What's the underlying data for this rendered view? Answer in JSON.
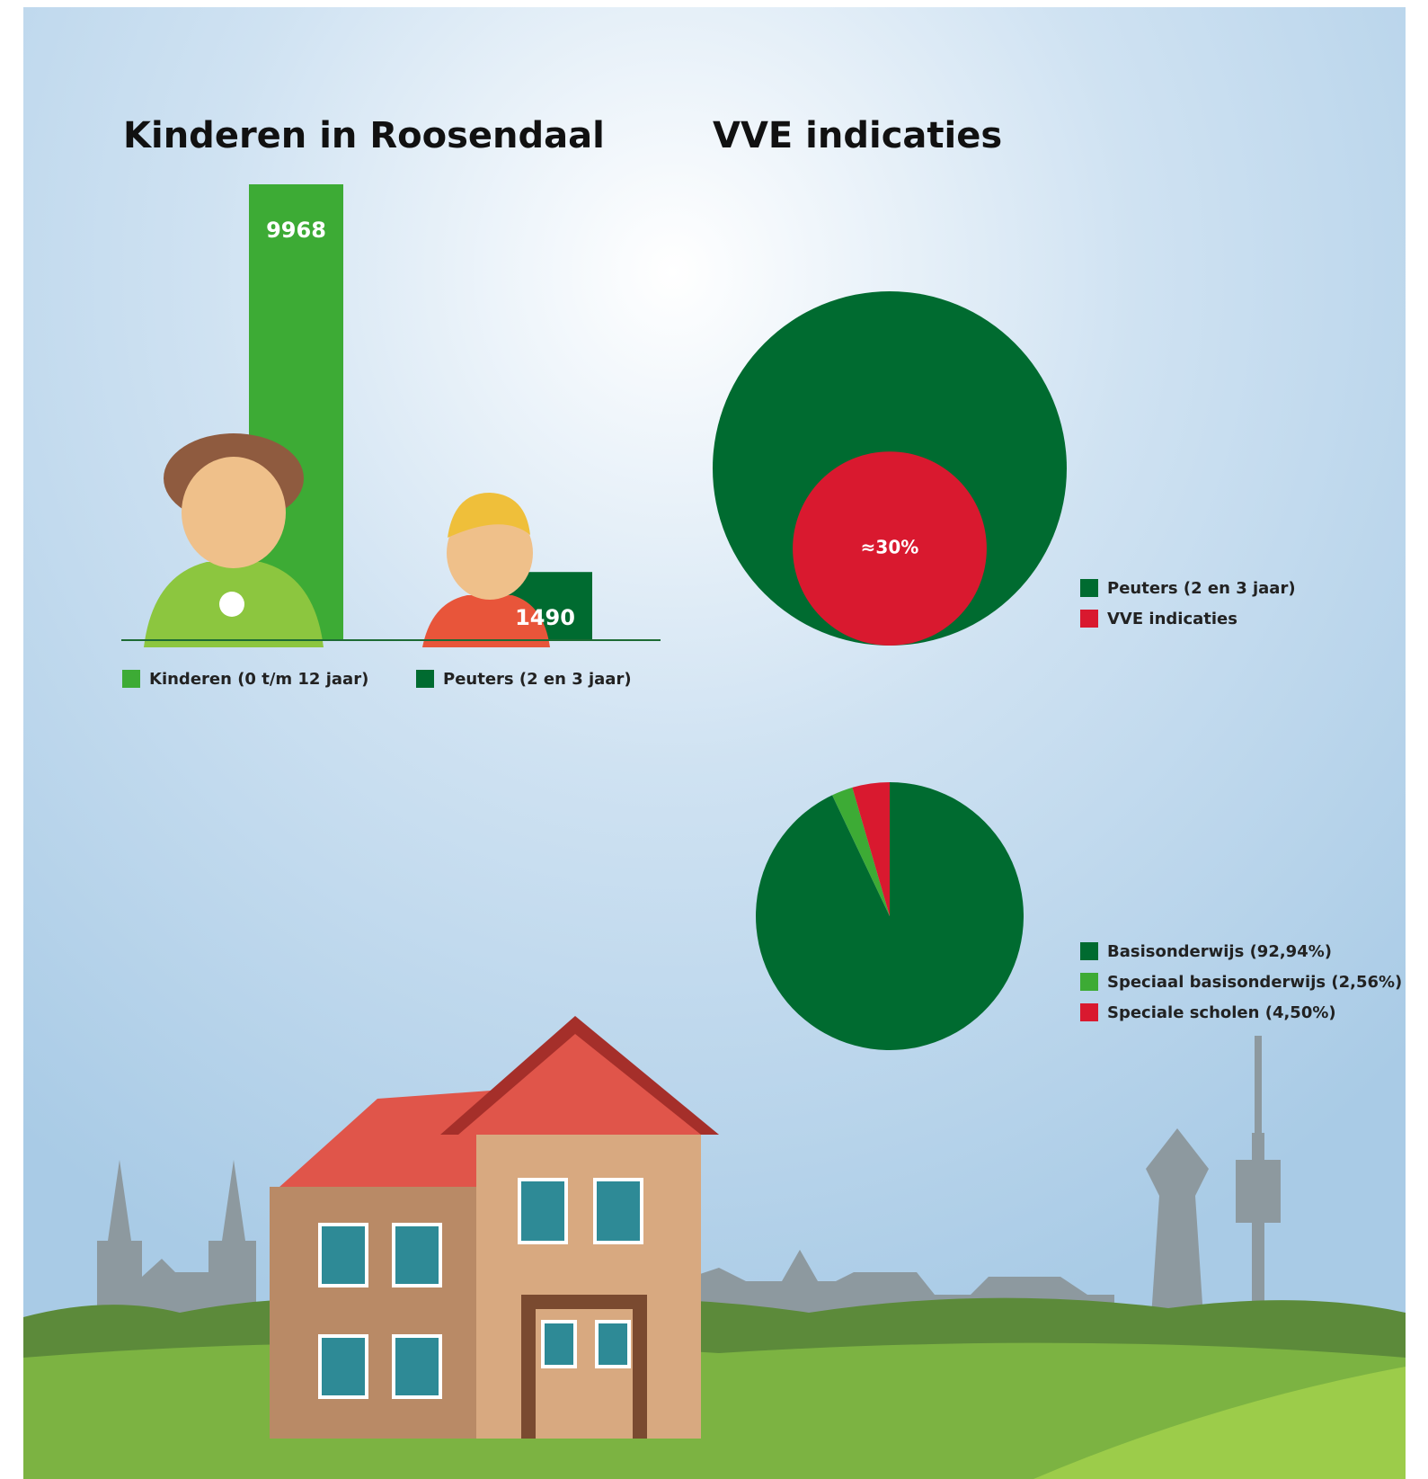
{
  "chart_data": [
    {
      "type": "bar",
      "title": "Kinderen in Roosendaal",
      "categories": [
        "Kinderen (0 t/m 12 jaar)",
        "Peuters (2 en 3 jaar)"
      ],
      "values": [
        9968,
        1490
      ],
      "colors": [
        "#3dab35",
        "#006b30"
      ]
    },
    {
      "type": "circle",
      "title": "VVE indicaties",
      "categories": [
        "Peuters (2 en 3 jaar)",
        "VVE indicaties"
      ],
      "values": [
        100,
        30
      ],
      "value_labels": [
        null,
        "≈30%"
      ],
      "colors": [
        "#006b30",
        "#d9192f"
      ]
    },
    {
      "type": "pie",
      "categories": [
        "Basisonderwijs (92,94%)",
        "Speciaal basisonderwijs (2,56%)",
        "Speciale scholen (4,50%)"
      ],
      "values": [
        92.94,
        2.56,
        4.5
      ],
      "colors": [
        "#006b30",
        "#3dab35",
        "#d9192f"
      ]
    }
  ]
}
